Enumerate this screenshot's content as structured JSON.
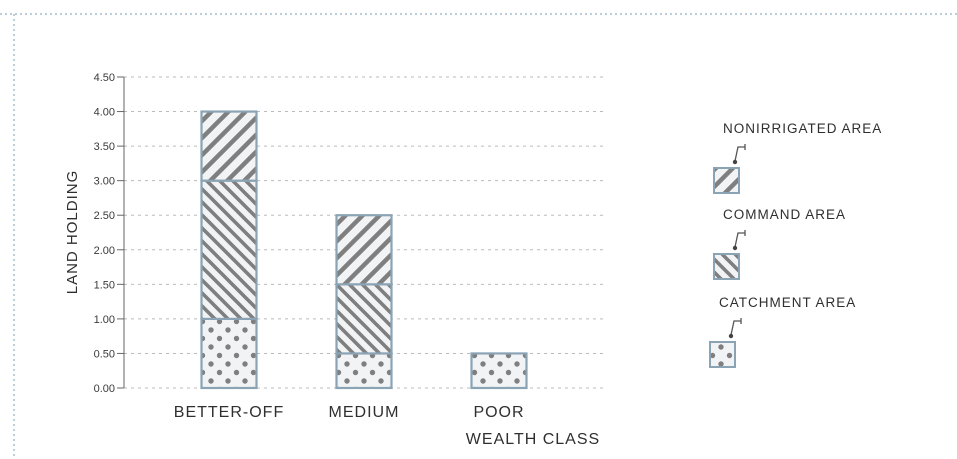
{
  "chart_data": {
    "type": "bar",
    "stacked": true,
    "categories": [
      "BETTER-OFF",
      "MEDIUM",
      "POOR"
    ],
    "xlabel": "WEALTH CLASS",
    "ylabel": "LAND HOLDING",
    "ylim": [
      0,
      4.5
    ],
    "yticks": [
      "0.00",
      "0.50",
      "1.00",
      "1.50",
      "2.00",
      "2.50",
      "3.00",
      "3.50",
      "4.00",
      "4.50"
    ],
    "grid": true,
    "legend_position": "right",
    "series": [
      {
        "name": "CATCHMENT AREA",
        "values": [
          1.0,
          0.5,
          0.5
        ],
        "pattern": "dots"
      },
      {
        "name": "COMMAND AREA",
        "values": [
          2.0,
          1.0,
          0
        ],
        "pattern": "backslash"
      },
      {
        "name": "NONIRRIGATED AREA",
        "values": [
          1.0,
          1.0,
          0
        ],
        "pattern": "slash"
      }
    ],
    "colors": {
      "fill": "#f1f3f5",
      "border": "#8aa3b5",
      "hatch": "#7f7f7f",
      "grid": "#bbbbbb",
      "frame": "#8fb0c4"
    }
  }
}
